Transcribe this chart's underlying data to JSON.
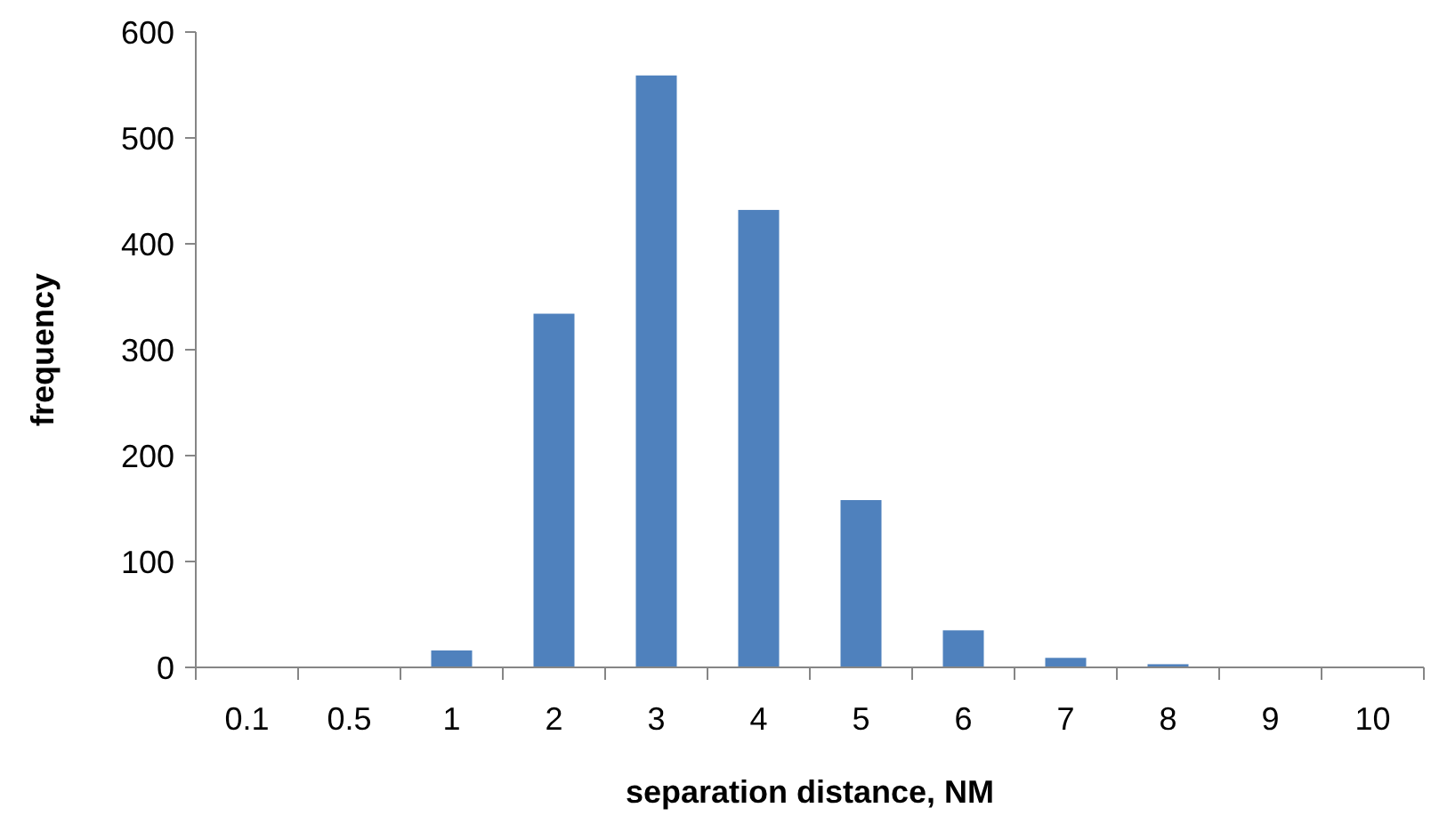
{
  "chart_data": {
    "type": "bar",
    "xlabel": "separation distance, NM",
    "ylabel": "frequency",
    "categories": [
      "0.1",
      "0.5",
      "1",
      "2",
      "3",
      "4",
      "5",
      "6",
      "7",
      "8",
      "9",
      "10"
    ],
    "values": [
      0,
      0,
      16,
      334,
      559,
      432,
      158,
      35,
      9,
      3,
      0,
      0
    ],
    "color": "#4f81bd",
    "ylim": [
      0,
      600
    ],
    "yticks": [
      0,
      100,
      200,
      300,
      400,
      500,
      600
    ],
    "grid": false
  }
}
